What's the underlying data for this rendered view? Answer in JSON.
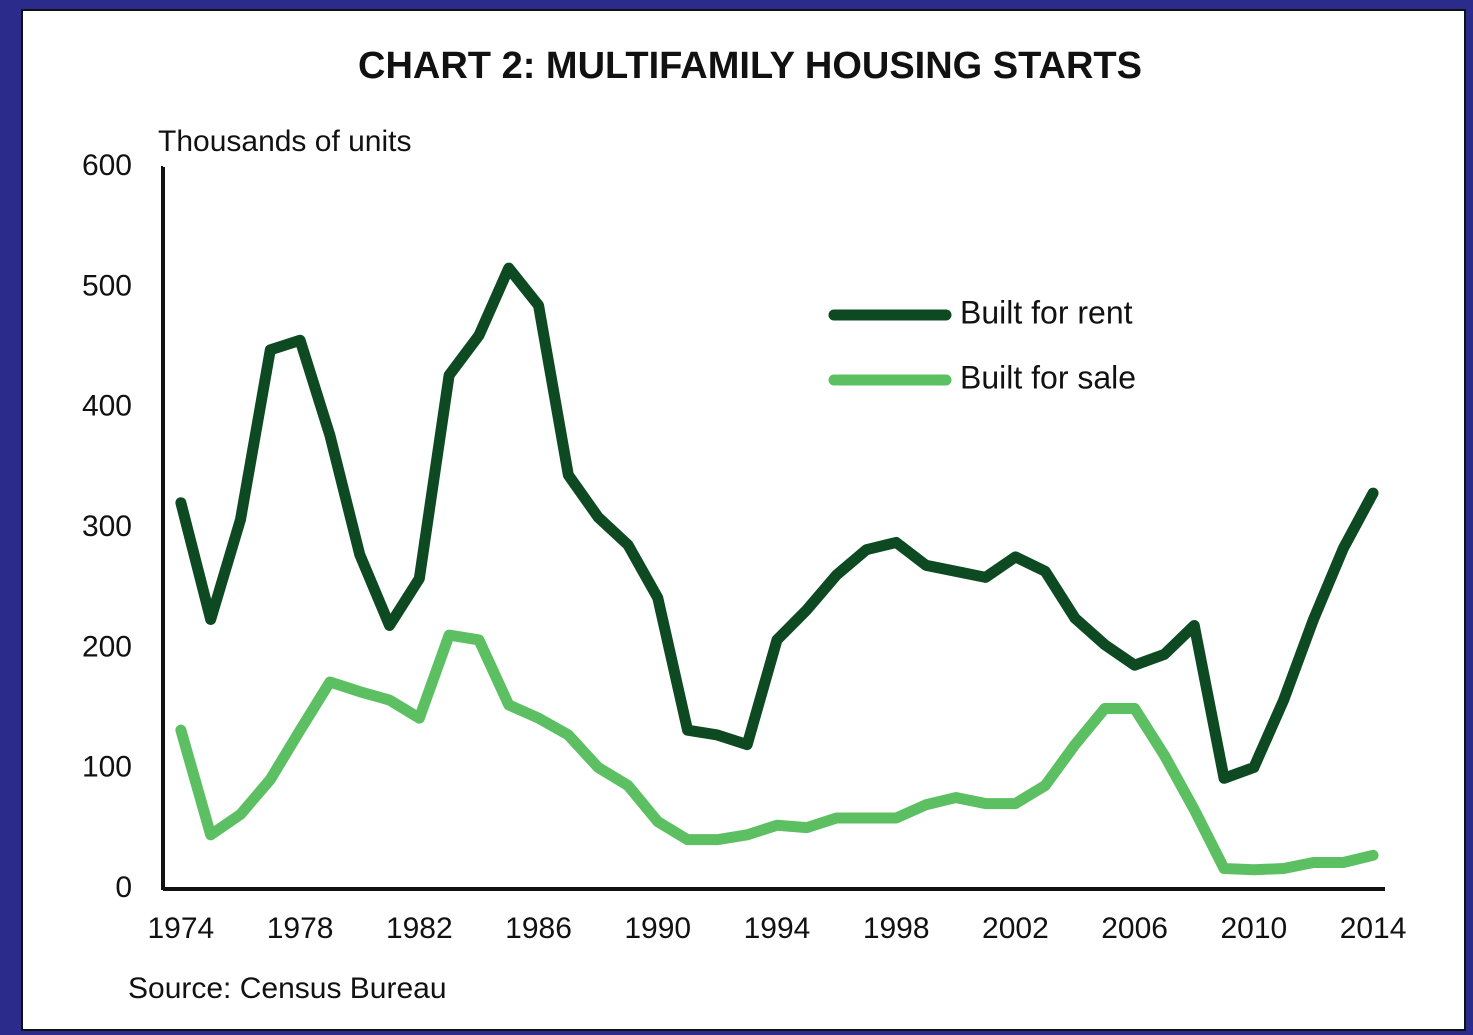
{
  "chart_data": {
    "type": "line",
    "title": "CHART 2: MULTIFAMILY HOUSING STARTS",
    "y_label": "Thousands of units",
    "source": "Source: Census Bureau",
    "x": [
      1974,
      1975,
      1976,
      1977,
      1978,
      1979,
      1980,
      1981,
      1982,
      1983,
      1984,
      1985,
      1986,
      1987,
      1988,
      1989,
      1990,
      1991,
      1992,
      1993,
      1994,
      1995,
      1996,
      1997,
      1998,
      1999,
      2000,
      2001,
      2002,
      2003,
      2004,
      2005,
      2006,
      2007,
      2008,
      2009,
      2010,
      2011,
      2012,
      2013,
      2014
    ],
    "series": [
      {
        "name": "Built for rent",
        "color": "#0d4a22",
        "values": [
          321,
          224,
          307,
          448,
          456,
          377,
          278,
          219,
          258,
          427,
          460,
          516,
          485,
          344,
          309,
          286,
          242,
          132,
          128,
          120,
          207,
          232,
          261,
          282,
          288,
          269,
          264,
          259,
          276,
          264,
          225,
          203,
          186,
          195,
          219,
          92,
          101,
          157,
          224,
          283,
          329
        ]
      },
      {
        "name": "Built for sale",
        "color": "#5cc063",
        "values": [
          132,
          45,
          62,
          91,
          132,
          172,
          164,
          157,
          142,
          211,
          207,
          153,
          142,
          128,
          101,
          86,
          56,
          41,
          41,
          45,
          53,
          51,
          59,
          59,
          59,
          70,
          76,
          71,
          71,
          86,
          120,
          150,
          150,
          111,
          66,
          17,
          16,
          17,
          22,
          22,
          28
        ]
      }
    ],
    "xlim": [
      1973.4,
      2014.4
    ],
    "xticks": [
      1974,
      1978,
      1982,
      1986,
      1990,
      1994,
      1998,
      2002,
      2006,
      2010,
      2014
    ],
    "ylim": [
      0,
      600
    ],
    "yticks": [
      0,
      100,
      200,
      300,
      400,
      500,
      600
    ],
    "grid": false,
    "legend": "upper right"
  }
}
